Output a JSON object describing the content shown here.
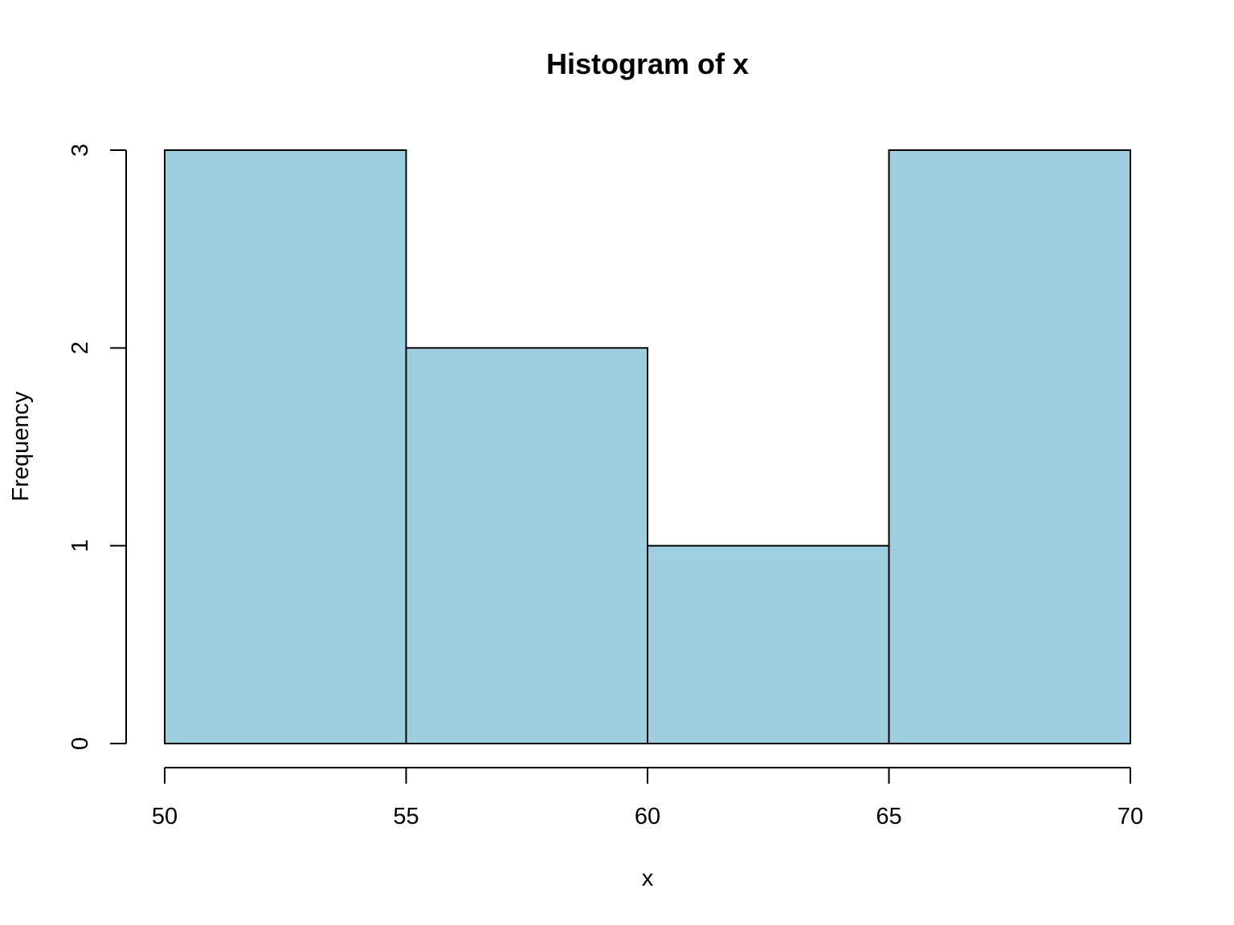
{
  "chart_data": {
    "type": "bar",
    "title": "Histogram of x",
    "xlabel": "x",
    "ylabel": "Frequency",
    "bins": [
      {
        "start": 50,
        "end": 55,
        "count": 3
      },
      {
        "start": 55,
        "end": 60,
        "count": 2
      },
      {
        "start": 60,
        "end": 65,
        "count": 1
      },
      {
        "start": 65,
        "end": 70,
        "count": 3
      }
    ],
    "xlim": [
      50,
      70
    ],
    "ylim": [
      0,
      3
    ],
    "x_ticks": [
      "50",
      "55",
      "60",
      "65",
      "70"
    ],
    "y_ticks": [
      "0",
      "1",
      "2",
      "3"
    ],
    "grid": false,
    "legend": "none",
    "bar_color": "#9ecfe0",
    "edge_color": "#000000"
  }
}
